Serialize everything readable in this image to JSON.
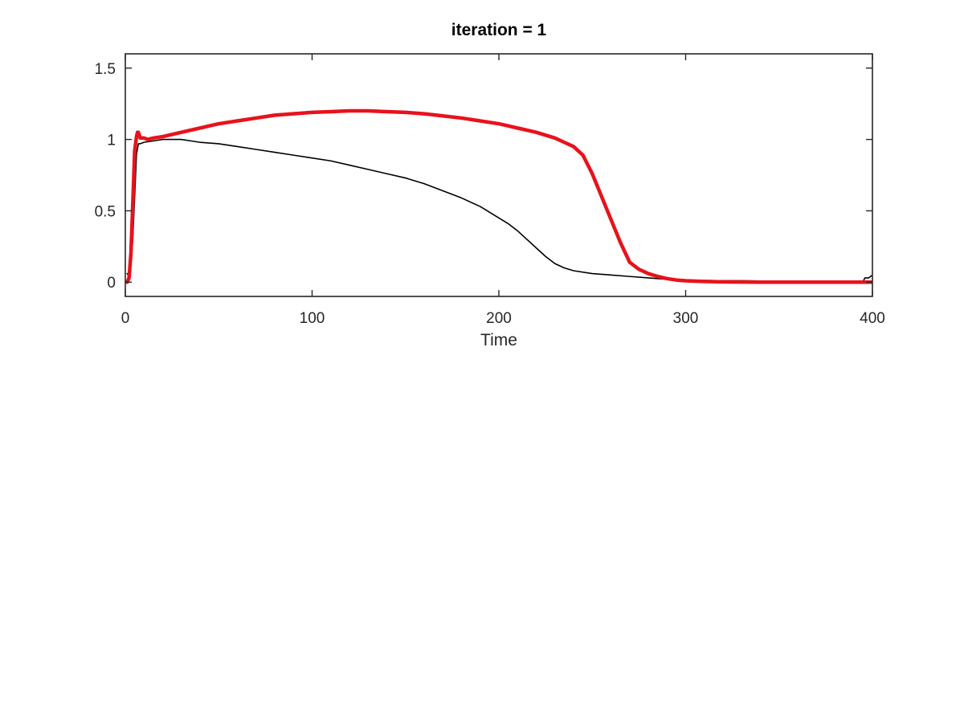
{
  "chart_data": {
    "type": "line",
    "title": "iteration = 1",
    "xlabel": "Time",
    "ylabel": "",
    "xlim": [
      0,
      400
    ],
    "ylim": [
      -0.1,
      1.6
    ],
    "xticks": [
      0,
      100,
      200,
      300,
      400
    ],
    "xtick_labels": [
      "0",
      "100",
      "200",
      "300",
      "400"
    ],
    "yticks": [
      0,
      0.5,
      1,
      1.5
    ],
    "ytick_labels": [
      "0",
      "0.5",
      "1",
      "1.5"
    ],
    "grid": false,
    "legend": "none",
    "series": [
      {
        "color": "#000000",
        "line_width": "thin",
        "x": [
          1,
          2,
          3,
          4,
          5,
          6,
          7,
          8,
          10,
          15,
          20,
          25,
          30,
          35,
          40,
          50,
          60,
          70,
          80,
          90,
          100,
          110,
          120,
          130,
          140,
          150,
          160,
          170,
          180,
          190,
          200,
          205,
          210,
          215,
          220,
          225,
          230,
          235,
          240,
          250,
          260,
          270,
          280,
          290,
          300,
          310,
          320,
          330,
          340,
          350,
          360,
          370,
          380,
          390,
          395,
          396,
          397,
          398,
          400
        ],
        "y": [
          0.06,
          0.04,
          0.12,
          0.3,
          0.6,
          0.9,
          0.97,
          0.97,
          0.98,
          0.99,
          1.0,
          1.0,
          1.0,
          0.99,
          0.98,
          0.97,
          0.95,
          0.93,
          0.91,
          0.89,
          0.87,
          0.85,
          0.82,
          0.79,
          0.76,
          0.73,
          0.69,
          0.64,
          0.59,
          0.53,
          0.45,
          0.41,
          0.36,
          0.3,
          0.24,
          0.18,
          0.13,
          0.1,
          0.08,
          0.06,
          0.05,
          0.04,
          0.03,
          0.02,
          0.015,
          0.012,
          0.01,
          0.01,
          0.008,
          0.007,
          0.006,
          0.005,
          0.005,
          0.004,
          0.004,
          0.03,
          0.03,
          0.03,
          0.05
        ]
      },
      {
        "color": "#e8121c",
        "line_width": "thick",
        "x": [
          1,
          2,
          3,
          4,
          5,
          6,
          6.5,
          7,
          7.5,
          8,
          9,
          10,
          12,
          15,
          20,
          30,
          40,
          50,
          60,
          70,
          80,
          90,
          100,
          110,
          120,
          125,
          130,
          140,
          150,
          160,
          170,
          180,
          190,
          200,
          210,
          220,
          230,
          235,
          240,
          245,
          250,
          255,
          260,
          265,
          270,
          275,
          280,
          285,
          290,
          295,
          300,
          310,
          320,
          340,
          360,
          380,
          400
        ],
        "y": [
          0.0,
          0.03,
          0.2,
          0.55,
          0.92,
          1.02,
          1.05,
          1.05,
          1.03,
          1.01,
          1.01,
          1.01,
          1.0,
          1.01,
          1.02,
          1.05,
          1.08,
          1.11,
          1.13,
          1.15,
          1.17,
          1.18,
          1.19,
          1.195,
          1.2,
          1.2,
          1.2,
          1.195,
          1.19,
          1.18,
          1.165,
          1.15,
          1.13,
          1.11,
          1.08,
          1.05,
          1.01,
          0.98,
          0.95,
          0.89,
          0.76,
          0.6,
          0.44,
          0.28,
          0.14,
          0.09,
          0.06,
          0.04,
          0.025,
          0.015,
          0.01,
          0.005,
          0.002,
          0.0,
          0.0,
          0.0,
          0.0
        ]
      }
    ]
  }
}
